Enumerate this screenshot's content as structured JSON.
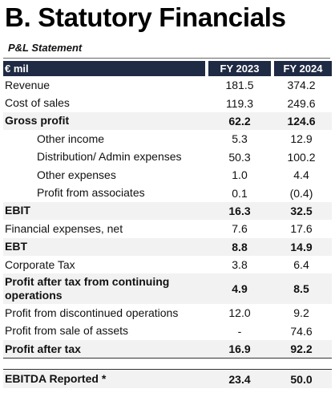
{
  "title": "B. Statutory Financials",
  "section_label": "P&L Statement",
  "table": {
    "headers": [
      "€ mil",
      "FY 2023",
      "FY 2024"
    ],
    "rows": [
      {
        "label": "Revenue",
        "fy2023": "181.5",
        "fy2024": "374.2"
      },
      {
        "label": "Cost of sales",
        "fy2023": "119.3",
        "fy2024": "249.6"
      },
      {
        "label": "Gross profit",
        "fy2023": "62.2",
        "fy2024": "124.6"
      },
      {
        "label": "Other income",
        "fy2023": "5.3",
        "fy2024": "12.9"
      },
      {
        "label": "Distribution/ Admin expenses",
        "fy2023": "50.3",
        "fy2024": "100.2"
      },
      {
        "label": "Other expenses",
        "fy2023": "1.0",
        "fy2024": "4.4"
      },
      {
        "label": "Profit from associates",
        "fy2023": "0.1",
        "fy2024": "(0.4)"
      },
      {
        "label": "EBIT",
        "fy2023": "16.3",
        "fy2024": "32.5"
      },
      {
        "label": "Financial expenses, net",
        "fy2023": "7.6",
        "fy2024": "17.6"
      },
      {
        "label": "EBT",
        "fy2023": "8.8",
        "fy2024": "14.9"
      },
      {
        "label": "Corporate Tax",
        "fy2023": "3.8",
        "fy2024": "6.4"
      },
      {
        "label": "Profit after tax from continuing operations",
        "fy2023": "4.9",
        "fy2024": "8.5"
      },
      {
        "label": "Profit from discontinued operations",
        "fy2023": "12.0",
        "fy2024": "9.2"
      },
      {
        "label": "Profit from sale of assets",
        "fy2023": "-",
        "fy2024": "74.6"
      },
      {
        "label": "Profit after tax",
        "fy2023": "16.9",
        "fy2024": "92.2"
      },
      {
        "label": "EBITDA Reported *",
        "fy2023": "23.4",
        "fy2024": "50.0"
      }
    ]
  }
}
